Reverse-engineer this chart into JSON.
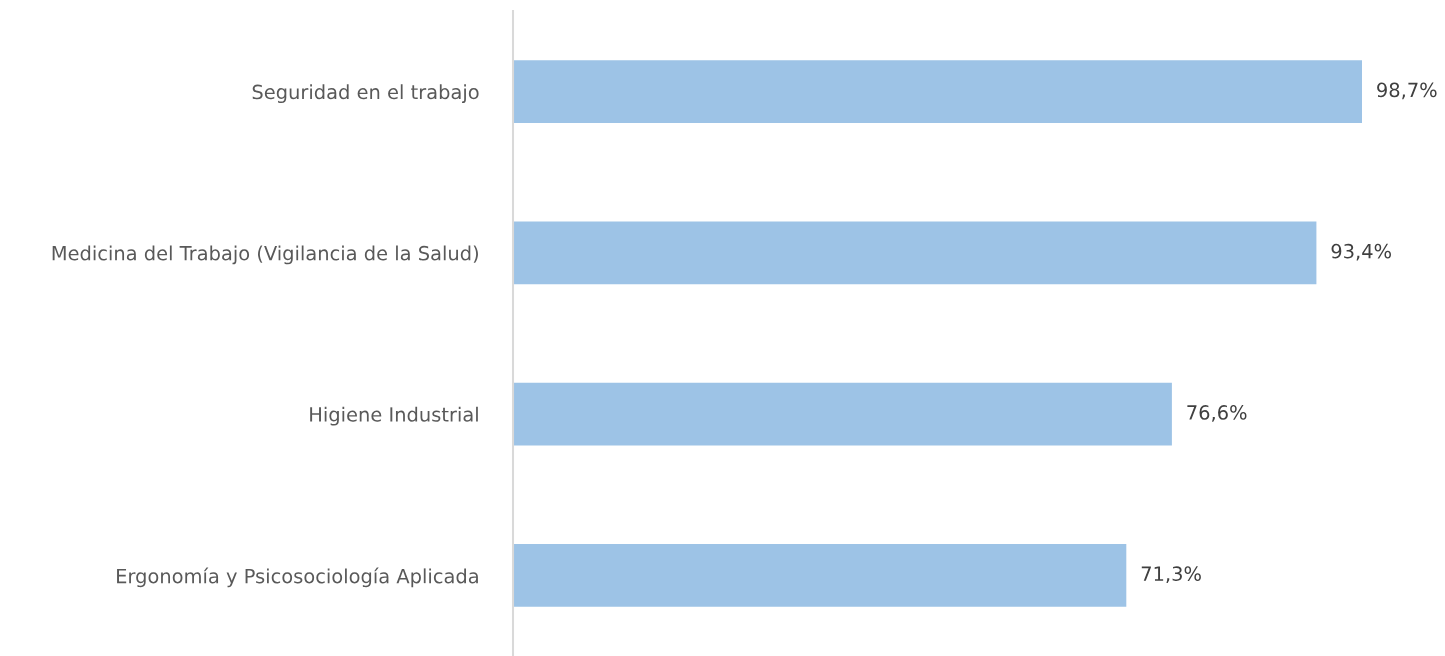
{
  "chart_data": {
    "type": "bar",
    "orientation": "horizontal",
    "categories": [
      "Seguridad en el trabajo",
      "Medicina del Trabajo (Vigilancia de la Salud)",
      "Higiene Industrial",
      "Ergonomía y Psicosociología Aplicada"
    ],
    "values": [
      98.7,
      93.4,
      76.6,
      71.3
    ],
    "value_labels": [
      "98,7%",
      "93,4%",
      "76,6%",
      "71,3%"
    ],
    "color": "#9dc3e6",
    "grid": false
  }
}
